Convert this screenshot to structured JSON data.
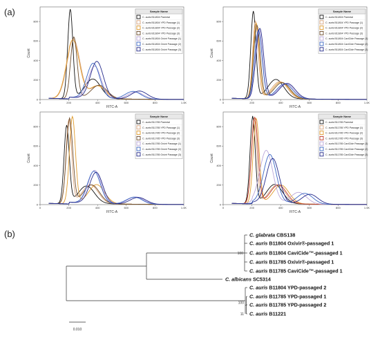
{
  "panel_labels": {
    "a": "(a)",
    "b": "(b)"
  },
  "chart_data": [
    {
      "type": "line",
      "xlabel": "FITC-A",
      "ylabel": "Count",
      "xlim": [
        0,
        1000
      ],
      "ylim": [
        0,
        950
      ],
      "x_tick_labels": [
        "0",
        "200",
        "400",
        "600",
        "800",
        "1.0K"
      ],
      "y_tick_labels": [
        "0",
        "200",
        "400",
        "600",
        "800"
      ],
      "legend_title": "Sample Name",
      "legend": "top-right",
      "series": [
        {
          "name": "C. auris B11804 Parental",
          "color": "#111111",
          "peak_x": 210,
          "peak_y": 900
        },
        {
          "name": "C. auris B11804 YPD Passage (1)",
          "color": "#d7a27a",
          "peak_x": 232,
          "peak_y": 600
        },
        {
          "name": "C. auris B11804 YPD Passage (2)",
          "color": "#e09a2a",
          "peak_x": 228,
          "peak_y": 590
        },
        {
          "name": "C. auris B11804 YPD Passage (3)",
          "color": "#6b4a2a",
          "peak_x": 235,
          "peak_y": 620
        },
        {
          "name": "C. auris B11804 Oxivir Passage (1)",
          "color": "#b9a6d9",
          "peak_x": 380,
          "peak_y": 330
        },
        {
          "name": "C. auris B11804 Oxivir Passage (2)",
          "color": "#3a66c4",
          "peak_x": 370,
          "peak_y": 360
        },
        {
          "name": "C. auris B11804 Oxivir Passage (3)",
          "color": "#23288a",
          "peak_x": 395,
          "peak_y": 380
        }
      ]
    },
    {
      "type": "line",
      "xlabel": "FITC-A",
      "ylabel": "Count",
      "xlim": [
        0,
        1000
      ],
      "ylim": [
        0,
        950
      ],
      "x_tick_labels": [
        "0",
        "200",
        "400",
        "600",
        "800",
        "1.0K"
      ],
      "y_tick_labels": [
        "0",
        "200",
        "400",
        "600",
        "800"
      ],
      "legend_title": "Sample Name",
      "legend": "top-right",
      "series": [
        {
          "name": "C. auris B11804 Parental",
          "color": "#111111",
          "peak_x": 210,
          "peak_y": 880
        },
        {
          "name": "C. auris B11804 YPD Passage (1)",
          "color": "#d7a27a",
          "peak_x": 225,
          "peak_y": 780
        },
        {
          "name": "C. auris B11804 YPD Passage (2)",
          "color": "#e09a2a",
          "peak_x": 230,
          "peak_y": 760
        },
        {
          "name": "C. auris B11804 YPD Passage (3)",
          "color": "#6b4a2a",
          "peak_x": 235,
          "peak_y": 740
        },
        {
          "name": "C. auris B11804 CaviCide Passage (1)",
          "color": "#b9a6d9",
          "peak_x": 250,
          "peak_y": 700
        },
        {
          "name": "C. auris B11804 CaviCide Passage (2)",
          "color": "#3a66c4",
          "peak_x": 245,
          "peak_y": 690
        },
        {
          "name": "C. auris B11804 CaviCide Passage (3)",
          "color": "#23288a",
          "peak_x": 255,
          "peak_y": 710
        }
      ]
    },
    {
      "type": "line",
      "xlabel": "FITC-A",
      "ylabel": "Count",
      "xlim": [
        0,
        1000
      ],
      "ylim": [
        0,
        950
      ],
      "x_tick_labels": [
        "0",
        "200",
        "400",
        "600",
        "800",
        "1.0K"
      ],
      "y_tick_labels": [
        "0",
        "200",
        "400",
        "600",
        "800"
      ],
      "legend_title": "Sample Name",
      "legend": "top-right",
      "series": [
        {
          "name": "C. auris B11785 Parental",
          "color": "#111111",
          "peak_x": 185,
          "peak_y": 800
        },
        {
          "name": "C. auris B11785 YPD Passage (1)",
          "color": "#d7a27a",
          "peak_x": 200,
          "peak_y": 860
        },
        {
          "name": "C. auris B11785 YPD Passage (2)",
          "color": "#e09a2a",
          "peak_x": 225,
          "peak_y": 880
        },
        {
          "name": "C. auris B11785 YPD Passage (3)",
          "color": "#6b4a2a",
          "peak_x": 205,
          "peak_y": 860
        },
        {
          "name": "C. auris B11785 Oxivir Passage (1)",
          "color": "#b9a6d9",
          "peak_x": 380,
          "peak_y": 340
        },
        {
          "name": "C. auris B11785 Oxivir Passage (2)",
          "color": "#3a66c4",
          "peak_x": 375,
          "peak_y": 330
        },
        {
          "name": "C. auris B11785 Oxivir Passage (3)",
          "color": "#23288a",
          "peak_x": 390,
          "peak_y": 320
        }
      ]
    },
    {
      "type": "line",
      "xlabel": "FITC-A",
      "ylabel": "Count",
      "xlim": [
        0,
        1000
      ],
      "ylim": [
        0,
        950
      ],
      "x_tick_labels": [
        "0",
        "200",
        "400",
        "600",
        "800",
        "1.0K"
      ],
      "y_tick_labels": [
        "0",
        "200",
        "400",
        "600",
        "800"
      ],
      "legend_title": "Sample Name",
      "legend": "top-right",
      "series": [
        {
          "name": "C. auris B11785 Parental",
          "color": "#111111",
          "peak_x": 205,
          "peak_y": 880
        },
        {
          "name": "C. auris B11785 YPD Passage (1)",
          "color": "#d7a27a",
          "peak_x": 215,
          "peak_y": 860
        },
        {
          "name": "C. auris B11785 YPD Passage (2)",
          "color": "#e09a2a",
          "peak_x": 230,
          "peak_y": 860
        },
        {
          "name": "C. auris B11785 YPD Passage (3)",
          "color": "#c0392b",
          "peak_x": 220,
          "peak_y": 870
        },
        {
          "name": "C. auris B11785 CaviCide Passage (1)",
          "color": "#b9a6d9",
          "peak_x": 300,
          "peak_y": 540
        },
        {
          "name": "C. auris B11785 CaviCide Passage (2)",
          "color": "#3a66c4",
          "peak_x": 325,
          "peak_y": 500
        },
        {
          "name": "C. auris B11785 CaviCide Passage (3)",
          "color": "#23288a",
          "peak_x": 345,
          "peak_y": 460
        }
      ]
    }
  ],
  "tree": {
    "taxa": [
      {
        "genus": "C. glabrata",
        "rest": " CBS138"
      },
      {
        "genus": "C. auris",
        "rest": " B11804 Oxivir®-passaged 1"
      },
      {
        "genus": "C. auris",
        "rest": " B11804 CaviCide™-passaged 1"
      },
      {
        "genus": "C. auris",
        "rest": " B11785 Oxivir®-passaged 1"
      },
      {
        "genus": "C. auris",
        "rest": " B11785 CaviCide™-passaged 1"
      },
      {
        "genus": "C. albicans",
        "rest": " SC5314"
      },
      {
        "genus": "C. auris",
        "rest": " B11804 YPD-passaged 2"
      },
      {
        "genus": "C. auris",
        "rest": " B11785 YPD-passaged 1"
      },
      {
        "genus": "C. auris",
        "rest": " B11785 YPD-passaged 2"
      },
      {
        "genus": "C. auris",
        "rest": " B11221"
      }
    ],
    "bootstrap": [
      "100",
      "100",
      "11"
    ],
    "scale_label": "0.010"
  }
}
